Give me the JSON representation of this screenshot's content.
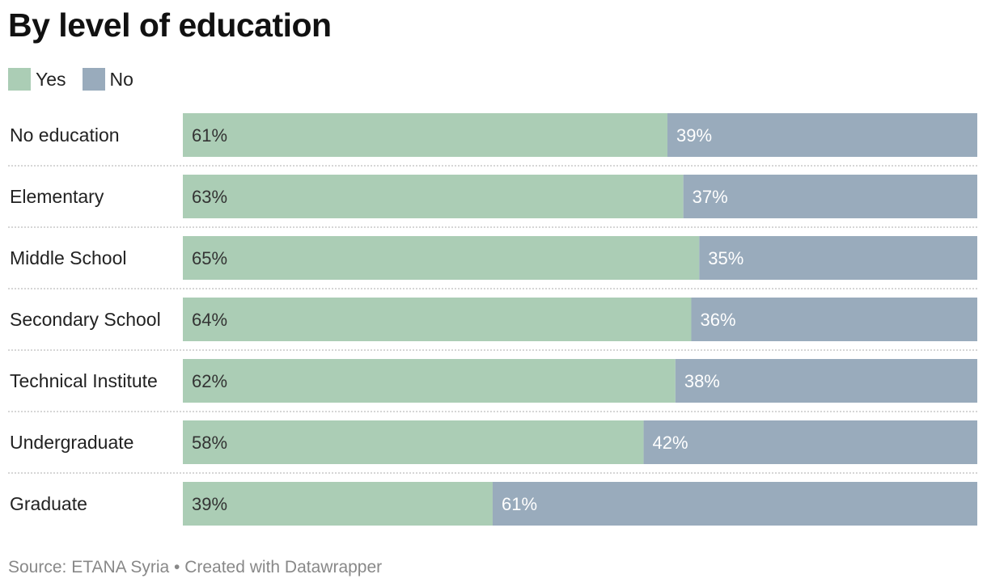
{
  "title": "By level of education",
  "source": "Source: ETANA Syria • Created with Datawrapper",
  "colors": {
    "yes": "#abcdb5",
    "no": "#99abbc",
    "yes_text": "#333333",
    "no_text": "#ffffff",
    "divider": "#c8c8c8"
  },
  "legend": [
    {
      "label": "Yes",
      "color": "#abcdb5"
    },
    {
      "label": "No",
      "color": "#99abbc"
    }
  ],
  "chart_data": {
    "type": "bar",
    "stacked": true,
    "orientation": "horizontal",
    "categories": [
      "No education",
      "Elementary",
      "Middle School",
      "Secondary School",
      "Technical Institute",
      "Undergraduate",
      "Graduate"
    ],
    "series": [
      {
        "name": "Yes",
        "values": [
          61,
          63,
          65,
          64,
          62,
          58,
          39
        ],
        "labels": [
          "61%",
          "63%",
          "65%",
          "64%",
          "62%",
          "58%",
          "39%"
        ]
      },
      {
        "name": "No",
        "values": [
          39,
          37,
          35,
          36,
          38,
          42,
          61
        ],
        "labels": [
          "39%",
          "37%",
          "35%",
          "36%",
          "38%",
          "42%",
          "61%"
        ]
      }
    ],
    "xlim": [
      0,
      100
    ],
    "unit": "%",
    "legend_position": "top-left"
  }
}
